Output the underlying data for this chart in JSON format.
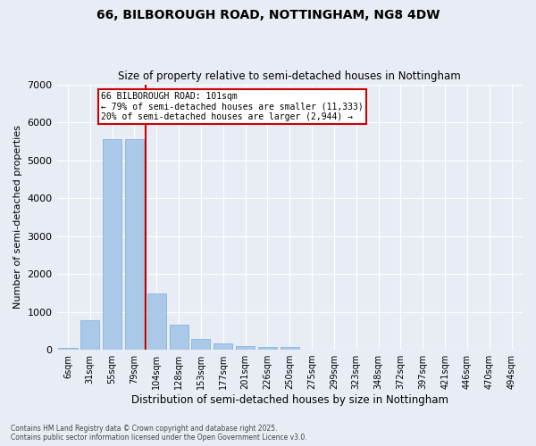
{
  "title_line1": "66, BILBOROUGH ROAD, NOTTINGHAM, NG8 4DW",
  "title_line2": "Size of property relative to semi-detached houses in Nottingham",
  "xlabel": "Distribution of semi-detached houses by size in Nottingham",
  "ylabel": "Number of semi-detached properties",
  "categories": [
    "6sqm",
    "31sqm",
    "55sqm",
    "79sqm",
    "104sqm",
    "128sqm",
    "153sqm",
    "177sqm",
    "201sqm",
    "226sqm",
    "250sqm",
    "275sqm",
    "299sqm",
    "323sqm",
    "348sqm",
    "372sqm",
    "397sqm",
    "421sqm",
    "446sqm",
    "470sqm",
    "494sqm"
  ],
  "values": [
    55,
    790,
    5550,
    5550,
    1490,
    660,
    280,
    155,
    90,
    65,
    65,
    0,
    0,
    0,
    0,
    0,
    0,
    0,
    0,
    0,
    0
  ],
  "bar_color": "#aac8e8",
  "bar_edge_color": "#7aaed4",
  "bg_color": "#e8ecf5",
  "grid_color": "#ffffff",
  "property_line_index": 4,
  "property_label": "66 BILBOROUGH ROAD: 101sqm",
  "annotation_line1": "← 79% of semi-detached houses are smaller (11,333)",
  "annotation_line2": "20% of semi-detached houses are larger (2,944) →",
  "annotation_box_color": "#ffffff",
  "annotation_box_edge_color": "#cc0000",
  "vline_color": "#cc0000",
  "ylim": [
    0,
    7000
  ],
  "yticks": [
    0,
    1000,
    2000,
    3000,
    4000,
    5000,
    6000,
    7000
  ],
  "footnote_line1": "Contains HM Land Registry data © Crown copyright and database right 2025.",
  "footnote_line2": "Contains public sector information licensed under the Open Government Licence v3.0."
}
